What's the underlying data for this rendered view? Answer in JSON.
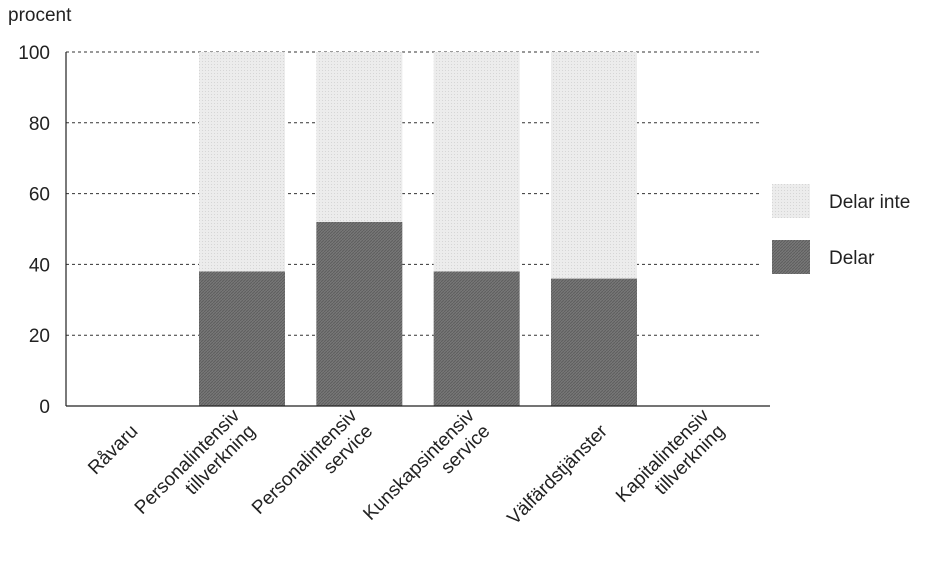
{
  "chart_data": {
    "type": "bar",
    "stacked": true,
    "ylabel": "procent",
    "ylim": [
      0,
      100
    ],
    "yticks": [
      0,
      20,
      40,
      60,
      80,
      100
    ],
    "grid": "dotted horizontal",
    "legend_placement": "right",
    "categories": [
      [
        "Råvaru"
      ],
      [
        "Personalintensiv",
        "tillverkning"
      ],
      [
        "Personalintensiv",
        "service"
      ],
      [
        "Kunskapsintensiv",
        "service"
      ],
      [
        "Välfärdstjänster"
      ],
      [
        "Kapitalintensiv",
        "tillverkning"
      ]
    ],
    "series": [
      {
        "name": "Delar",
        "values": [
          0,
          38,
          52,
          38,
          36,
          0
        ],
        "color": "#7a7a7a"
      },
      {
        "name": "Delar inte",
        "values": [
          0,
          62,
          48,
          62,
          64,
          0
        ],
        "color": "#e6e6e6"
      }
    ],
    "legend_order": [
      "Delar inte",
      "Delar"
    ]
  }
}
